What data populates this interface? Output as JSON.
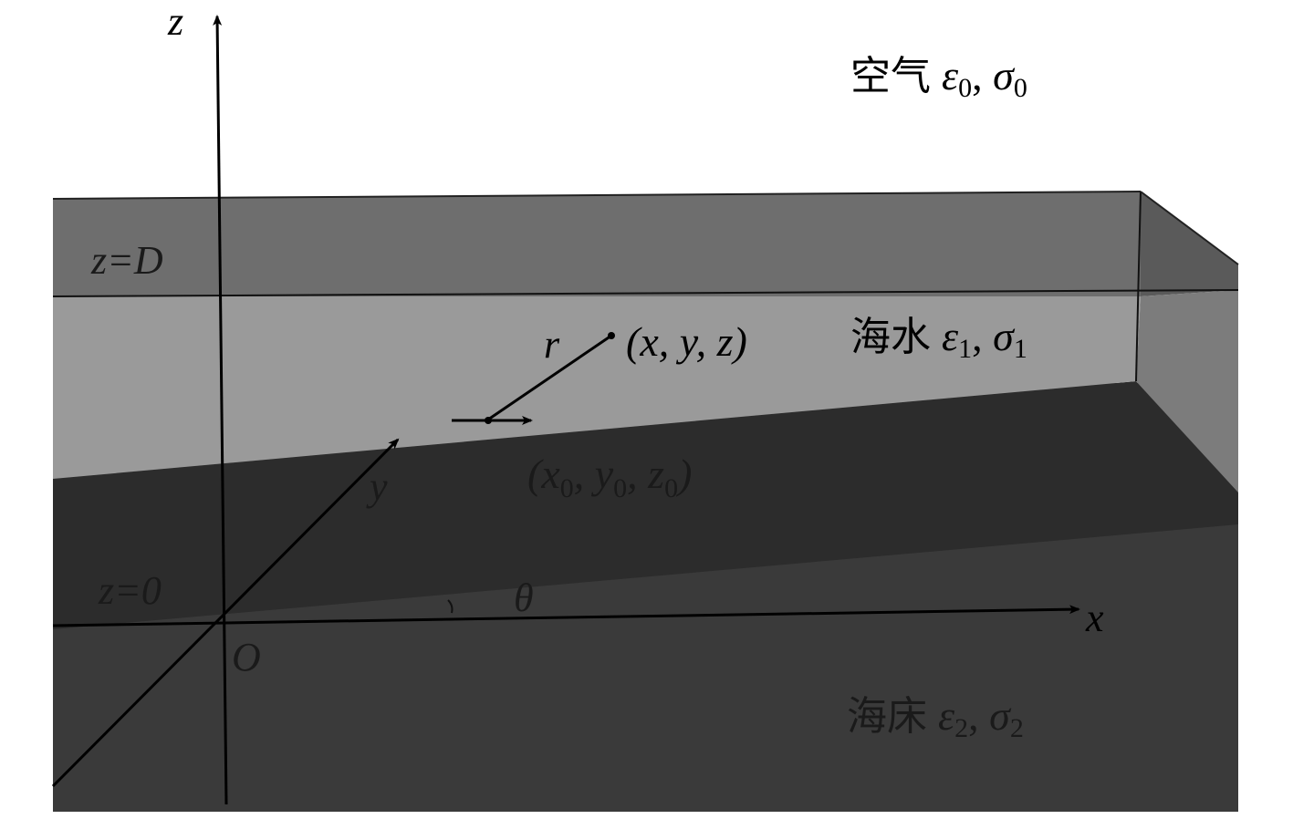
{
  "labels": {
    "z_axis": "z",
    "x_axis": "x",
    "y_axis": "y",
    "origin": "O",
    "angle": "θ",
    "r": "r",
    "surface": "z=D",
    "bottom": "z=0",
    "field_point": "(x, y, z)",
    "source_point": {
      "open": "(x",
      "s1": "0",
      "m1": ", y",
      "s2": "0",
      "m2": ", z",
      "s3": "0",
      "close": ")"
    }
  },
  "layers": {
    "air": {
      "name": "空气",
      "eps": "ε",
      "sub": "0",
      "sep": ", ",
      "sigma": "σ",
      "sub2": "0"
    },
    "water": {
      "name": "海水",
      "eps": "ε",
      "sub": "1",
      "sep": ", ",
      "sigma": "σ",
      "sub2": "1"
    },
    "seabed": {
      "name": "海床",
      "eps": "ε",
      "sub": "2",
      "sep": ", ",
      "sigma": "σ",
      "sub2": "2"
    }
  },
  "colors": {
    "top_layer": "#6e6e6e",
    "water": "#9a9a9a",
    "seabed_slope": "#2c2c2c",
    "seabed": "#3a3a3a"
  }
}
